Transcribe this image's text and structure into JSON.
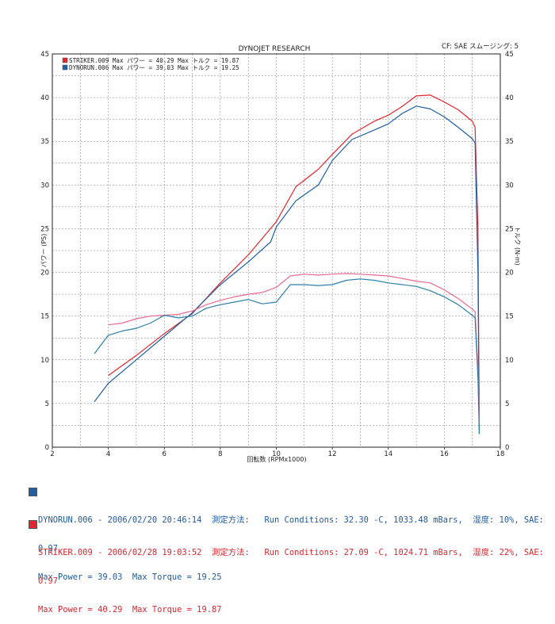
{
  "header": {
    "title": "DYNOJET  RESEARCH",
    "cf": "CF: SAE  スムージング: 5"
  },
  "colors": {
    "striker": "#e2262e",
    "dynorun": "#1e5fa8",
    "striker_torque": "#e86a92",
    "dynorun_torque": "#2d7fa8",
    "grid": "#777777"
  },
  "legend": [
    {
      "swatch": "red",
      "text": "STRIKER.009 Max パワー = 40.29    Max トルク = 19.87"
    },
    {
      "swatch": "blue",
      "text": "DYNORUN.006 Max パワー = 39.03    Max トルク = 19.25"
    }
  ],
  "footer": [
    {
      "swatch": "blue",
      "lines": [
        "DYNORUN.006 - 2006/02/20 20:46:14  測定方法:   Run Conditions: 32.30 -C, 1033.48 mBars,  湿度: 10%, SAE:",
        "0.97",
        "Max Power = 39.03  Max Torque = 19.25"
      ]
    },
    {
      "swatch": "red",
      "lines": [
        "STRIKER.009 - 2006/02/28 19:03:52  測定方法:   Run Conditions: 27.09 -C, 1024.71 mBars,  湿度: 22%, SAE:",
        "0.97",
        "Max Power = 40.29  Max Torque = 19.87"
      ]
    }
  ],
  "chart_data": {
    "type": "line",
    "title": "DYNOJET  RESEARCH",
    "xlabel": "回転数 (RPMx1000)",
    "ylabel_left": "パワー (PS)",
    "ylabel_right": "トルク (N-m)",
    "xlim": [
      2,
      18
    ],
    "ylim": [
      0,
      45
    ],
    "xticks": [
      2,
      4,
      6,
      8,
      10,
      12,
      14,
      16,
      18
    ],
    "yticks": [
      0,
      5,
      10,
      15,
      20,
      25,
      30,
      35,
      40,
      45
    ],
    "grid": true,
    "legend_position": "top-left",
    "series": [
      {
        "name": "STRIKER.009",
        "kind": "power",
        "color": "#e2262e",
        "x": [
          4.0,
          5.0,
          6.0,
          7.0,
          8.0,
          9.0,
          10.0,
          10.7,
          11.5,
          12.0,
          12.7,
          13.5,
          14.0,
          14.5,
          15.0,
          15.5,
          16.0,
          16.5,
          17.0,
          17.1,
          17.2,
          17.25
        ],
        "y": [
          8.2,
          10.5,
          13.0,
          15.3,
          18.8,
          22.0,
          25.8,
          29.8,
          31.8,
          33.5,
          35.8,
          37.3,
          38.0,
          39.0,
          40.2,
          40.29,
          39.5,
          38.6,
          37.3,
          36.6,
          25.0,
          2.0
        ]
      },
      {
        "name": "DYNORUN.006",
        "kind": "power",
        "color": "#1e5fa8",
        "x": [
          3.5,
          4.0,
          5.0,
          6.0,
          7.0,
          8.0,
          9.0,
          9.8,
          10.0,
          10.7,
          11.5,
          12.0,
          12.7,
          13.5,
          14.0,
          14.5,
          15.0,
          15.5,
          16.0,
          16.5,
          17.0,
          17.1,
          17.2,
          17.25
        ],
        "y": [
          5.2,
          7.3,
          10.0,
          12.7,
          15.4,
          18.6,
          21.2,
          23.5,
          25.2,
          28.2,
          30.0,
          32.8,
          35.2,
          36.3,
          37.0,
          38.2,
          39.03,
          38.7,
          37.8,
          36.6,
          35.3,
          34.8,
          20.0,
          1.5
        ]
      },
      {
        "name": "STRIKER.009",
        "kind": "torque",
        "color": "#e86a92",
        "x": [
          4.0,
          4.5,
          5.0,
          5.5,
          6.0,
          6.5,
          7.0,
          7.5,
          8.0,
          8.5,
          9.0,
          9.5,
          10.0,
          10.5,
          11.0,
          11.5,
          12.0,
          12.5,
          13.0,
          13.5,
          14.0,
          14.5,
          15.0,
          15.5,
          16.0,
          16.5,
          17.0,
          17.1,
          17.2,
          17.25
        ],
        "y": [
          14.0,
          14.2,
          14.7,
          15.0,
          15.1,
          15.2,
          15.6,
          16.3,
          16.8,
          17.2,
          17.5,
          17.7,
          18.3,
          19.6,
          19.8,
          19.7,
          19.8,
          19.87,
          19.8,
          19.7,
          19.6,
          19.3,
          19.0,
          18.8,
          18.0,
          17.0,
          15.8,
          15.5,
          9.0,
          2.5
        ]
      },
      {
        "name": "DYNORUN.006",
        "kind": "torque",
        "color": "#2d7fa8",
        "x": [
          3.5,
          4.0,
          4.5,
          5.0,
          5.5,
          6.0,
          6.5,
          7.0,
          7.5,
          8.0,
          8.5,
          9.0,
          9.5,
          10.0,
          10.5,
          11.0,
          11.5,
          12.0,
          12.5,
          13.0,
          13.5,
          14.0,
          14.5,
          15.0,
          15.5,
          16.0,
          16.5,
          17.0,
          17.1,
          17.2,
          17.25
        ],
        "y": [
          10.7,
          12.8,
          13.3,
          13.6,
          14.2,
          15.1,
          14.8,
          15.0,
          15.9,
          16.3,
          16.6,
          16.9,
          16.4,
          16.6,
          18.6,
          18.6,
          18.5,
          18.6,
          19.1,
          19.25,
          19.1,
          18.8,
          18.6,
          18.4,
          17.9,
          17.2,
          16.3,
          15.1,
          14.8,
          8.0,
          1.5
        ]
      }
    ]
  }
}
